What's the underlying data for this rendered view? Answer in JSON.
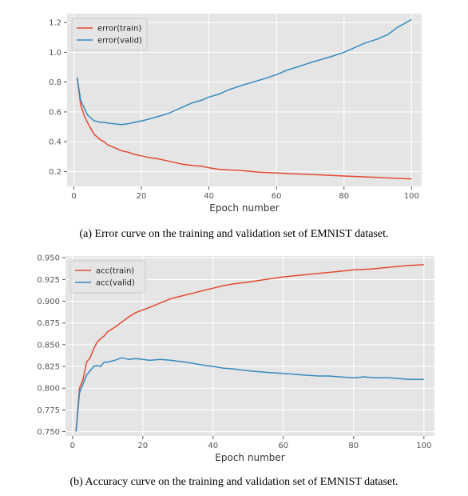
{
  "chart_data": [
    {
      "type": "line",
      "title": "",
      "xlabel": "Epoch number",
      "ylabel": "",
      "xlim": [
        -2,
        103
      ],
      "ylim": [
        0.1,
        1.26
      ],
      "xticks": [
        0,
        20,
        40,
        60,
        80,
        100
      ],
      "yticks": [
        0.2,
        0.4,
        0.6,
        0.8,
        1.0,
        1.2
      ],
      "ytick_decimals": 1,
      "grid": true,
      "legend": "top-left",
      "caption": "(a) Error curve on the training and validation set of EMNIST dataset.",
      "series": [
        {
          "name": "error(train)",
          "color": "#e24a33",
          "x": [
            1,
            2,
            3,
            4,
            5,
            6,
            7,
            8,
            9,
            10,
            12,
            14,
            16,
            18,
            20,
            22,
            25,
            28,
            30,
            32,
            35,
            38,
            40,
            43,
            46,
            50,
            55,
            60,
            65,
            70,
            75,
            80,
            85,
            90,
            95,
            100
          ],
          "y": [
            0.83,
            0.65,
            0.58,
            0.53,
            0.49,
            0.45,
            0.43,
            0.41,
            0.4,
            0.38,
            0.36,
            0.34,
            0.33,
            0.315,
            0.305,
            0.295,
            0.285,
            0.27,
            0.26,
            0.25,
            0.24,
            0.235,
            0.225,
            0.215,
            0.21,
            0.205,
            0.195,
            0.19,
            0.185,
            0.18,
            0.175,
            0.17,
            0.165,
            0.16,
            0.155,
            0.15
          ]
        },
        {
          "name": "error(valid)",
          "color": "#348abd",
          "x": [
            1,
            2,
            3,
            4,
            5,
            6,
            7,
            8,
            9,
            10,
            12,
            14,
            16,
            18,
            20,
            22,
            25,
            28,
            30,
            32,
            35,
            38,
            40,
            43,
            46,
            50,
            53,
            56,
            60,
            63,
            66,
            70,
            73,
            76,
            80,
            83,
            86,
            90,
            93,
            96,
            100
          ],
          "y": [
            0.83,
            0.68,
            0.63,
            0.58,
            0.56,
            0.54,
            0.535,
            0.53,
            0.53,
            0.525,
            0.52,
            0.515,
            0.52,
            0.53,
            0.54,
            0.55,
            0.57,
            0.59,
            0.61,
            0.63,
            0.66,
            0.68,
            0.7,
            0.72,
            0.75,
            0.78,
            0.8,
            0.82,
            0.85,
            0.88,
            0.9,
            0.93,
            0.95,
            0.97,
            1.0,
            1.03,
            1.06,
            1.09,
            1.12,
            1.17,
            1.22
          ]
        }
      ]
    },
    {
      "type": "line",
      "title": "",
      "xlabel": "Epoch number",
      "ylabel": "",
      "xlim": [
        -2,
        103
      ],
      "ylim": [
        0.745,
        0.952
      ],
      "xticks": [
        0,
        20,
        40,
        60,
        80,
        100
      ],
      "yticks": [
        0.75,
        0.775,
        0.8,
        0.825,
        0.85,
        0.875,
        0.9,
        0.925,
        0.95
      ],
      "ytick_decimals": 3,
      "grid": true,
      "legend": "top-left",
      "caption": "(b) Accuracy curve on the training and validation set of EMNIST dataset.",
      "series": [
        {
          "name": "acc(train)",
          "color": "#e24a33",
          "x": [
            1,
            2,
            3,
            4,
            5,
            6,
            7,
            8,
            9,
            10,
            12,
            14,
            16,
            18,
            20,
            22,
            25,
            28,
            30,
            32,
            35,
            38,
            40,
            43,
            46,
            50,
            55,
            60,
            65,
            70,
            75,
            80,
            85,
            90,
            95,
            100
          ],
          "y": [
            0.75,
            0.8,
            0.81,
            0.83,
            0.835,
            0.845,
            0.853,
            0.857,
            0.86,
            0.865,
            0.87,
            0.876,
            0.882,
            0.887,
            0.89,
            0.893,
            0.898,
            0.903,
            0.905,
            0.907,
            0.91,
            0.913,
            0.915,
            0.918,
            0.92,
            0.922,
            0.925,
            0.928,
            0.93,
            0.932,
            0.934,
            0.936,
            0.937,
            0.939,
            0.941,
            0.942
          ]
        },
        {
          "name": "acc(valid)",
          "color": "#348abd",
          "x": [
            1,
            2,
            3,
            4,
            5,
            6,
            7,
            8,
            9,
            10,
            12,
            14,
            16,
            18,
            20,
            22,
            25,
            28,
            30,
            32,
            35,
            38,
            40,
            43,
            46,
            50,
            53,
            56,
            60,
            63,
            66,
            70,
            73,
            76,
            80,
            83,
            86,
            90,
            93,
            96,
            100
          ],
          "y": [
            0.75,
            0.795,
            0.805,
            0.815,
            0.82,
            0.825,
            0.826,
            0.825,
            0.83,
            0.83,
            0.832,
            0.835,
            0.833,
            0.834,
            0.833,
            0.832,
            0.833,
            0.832,
            0.831,
            0.83,
            0.828,
            0.826,
            0.825,
            0.823,
            0.822,
            0.82,
            0.819,
            0.818,
            0.817,
            0.816,
            0.815,
            0.814,
            0.814,
            0.813,
            0.812,
            0.813,
            0.812,
            0.812,
            0.811,
            0.81,
            0.81
          ]
        }
      ]
    }
  ]
}
